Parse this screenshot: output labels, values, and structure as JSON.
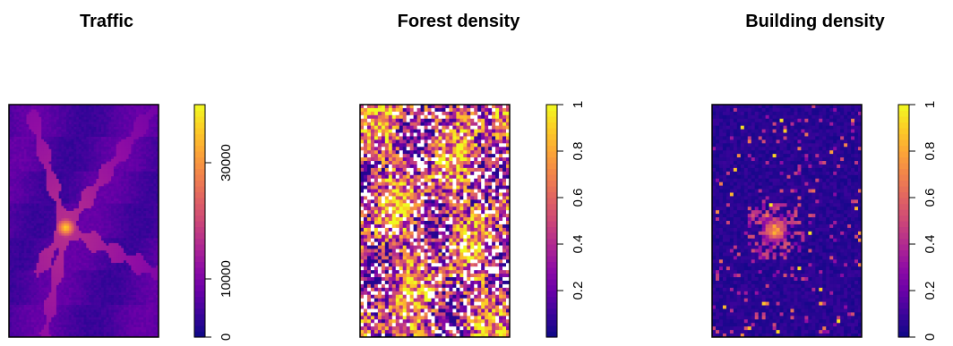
{
  "chart_data": [
    {
      "type": "heatmap",
      "title": "Traffic",
      "legend_ticks": [
        0,
        10000,
        30000
      ],
      "legend_range": [
        0,
        40000
      ],
      "description_pattern": "radial star-shaped road network with hotspot in center",
      "colorscale": [
        "#0d0887",
        "#3b049a",
        "#6a00a8",
        "#900da4",
        "#b12a90",
        "#cc4778",
        "#e16462",
        "#f2844b",
        "#fca636",
        "#fcce25",
        "#f0f921"
      ]
    },
    {
      "type": "heatmap",
      "title": "Forest density",
      "legend_ticks": [
        0.2,
        0.4,
        0.6,
        0.8,
        1
      ],
      "legend_range": [
        0,
        1
      ],
      "colorscale": [
        "#0d0887",
        "#3b049a",
        "#6a00a8",
        "#900da4",
        "#b12a90",
        "#cc4778",
        "#e16462",
        "#f2844b",
        "#fca636",
        "#fcce25",
        "#f0f921"
      ]
    },
    {
      "type": "heatmap",
      "title": "Building density",
      "legend_ticks": [
        0,
        0.2,
        0.4,
        0.6,
        0.8,
        1
      ],
      "legend_range": [
        0,
        1
      ],
      "colorscale": [
        "#0d0887",
        "#3b049a",
        "#6a00a8",
        "#900da4",
        "#b12a90",
        "#cc4778",
        "#e16462",
        "#f2844b",
        "#fca636",
        "#fcce25",
        "#f0f921"
      ]
    }
  ]
}
